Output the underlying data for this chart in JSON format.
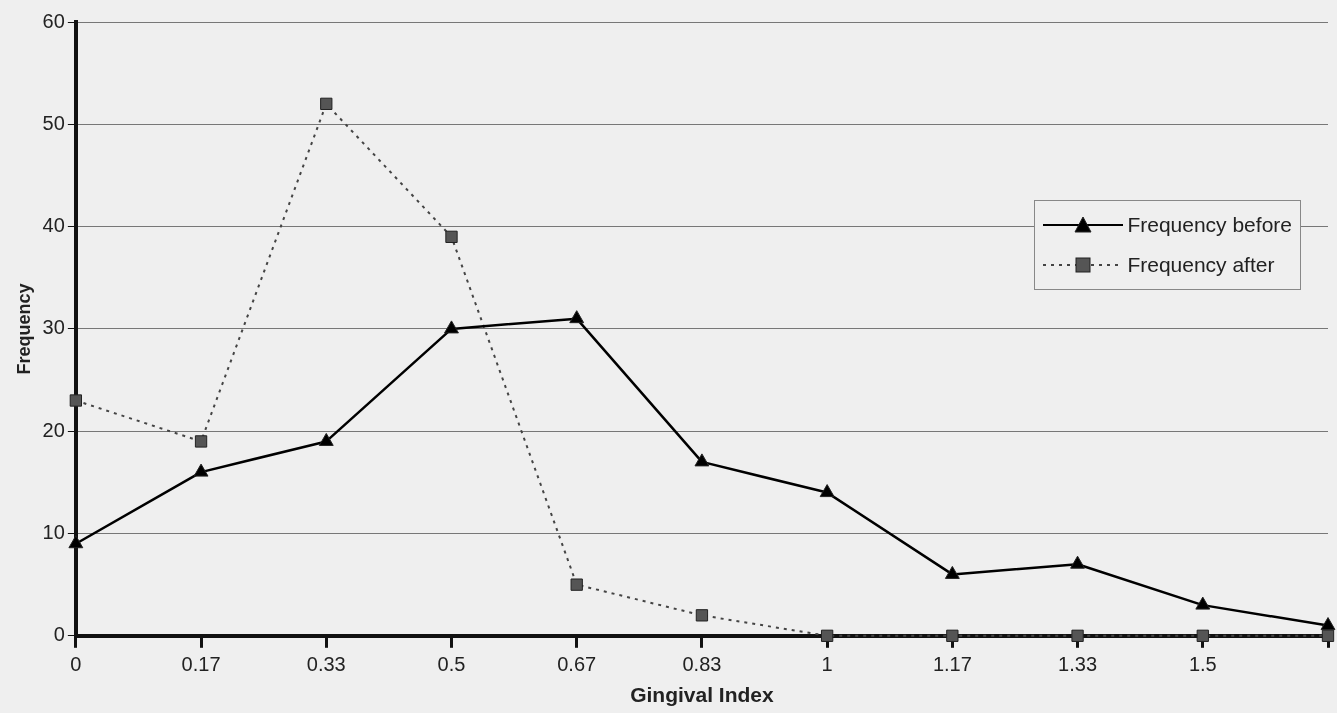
{
  "chart_data": {
    "type": "line",
    "xlabel": "Gingival Index",
    "ylabel": "Frequency",
    "categories": [
      "0",
      "0.17",
      "0.33",
      "0.5",
      "0.67",
      "0.83",
      "1",
      "1.17",
      "1.33",
      "1.5",
      null
    ],
    "series": [
      {
        "name": "Frequency before",
        "color": "#000000",
        "values": [
          9,
          16,
          19,
          30,
          31,
          17,
          14,
          6,
          7,
          3,
          1
        ],
        "marker": "triangle",
        "line_style": "solid"
      },
      {
        "name": "Frequency after",
        "color": "#555555",
        "values": [
          23,
          19,
          52,
          39,
          5,
          2,
          0,
          0,
          0,
          0,
          0
        ],
        "marker": "square",
        "line_style": "dotted"
      }
    ],
    "ylim": [
      0,
      60
    ],
    "yticks": [
      0,
      10,
      20,
      30,
      40,
      50,
      60
    ],
    "grid": "y",
    "legend": "right"
  }
}
